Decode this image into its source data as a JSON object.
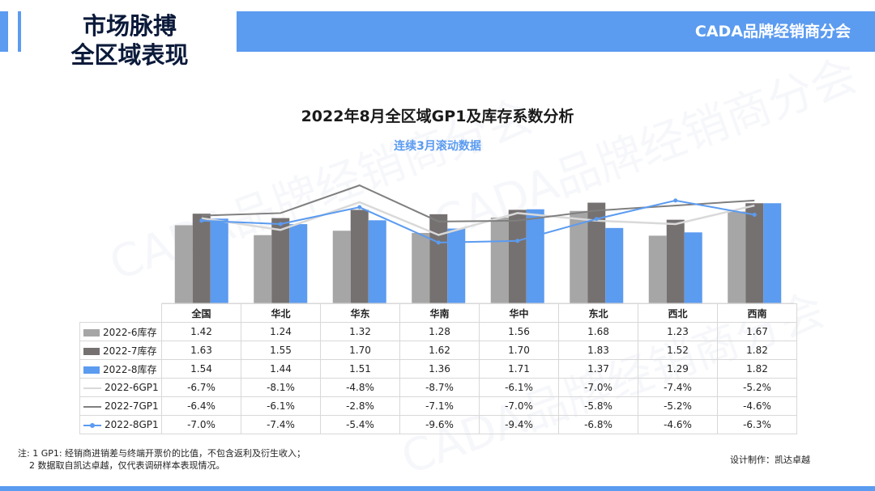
{
  "header": {
    "section_title_line1": "市场脉搏",
    "section_title_line2": "全区域表现",
    "brand": "CADA品牌经销商分会"
  },
  "watermark_text": "CADA品牌经销商分会",
  "colors": {
    "accent": "#5b9bf0",
    "inv6": "#a6a6a6",
    "inv7": "#767171",
    "inv8": "#5b9bf0",
    "gp6": "#d9d9d9",
    "gp7": "#7f7f7f",
    "gp8": "#5b9bf0"
  },
  "chart_data": {
    "type": "bar",
    "title": "2022年8月全区域GP1及库存系数分析",
    "subtitle": "连续3月滚动数据",
    "categories": [
      "全国",
      "华北",
      "华东",
      "华南",
      "华中",
      "东北",
      "西北",
      "西南"
    ],
    "series": [
      {
        "name": "2022-6库存",
        "kind": "bar",
        "values": [
          1.42,
          1.24,
          1.32,
          1.28,
          1.56,
          1.68,
          1.23,
          1.67
        ],
        "labels": [
          "1.42",
          "1.24",
          "1.32",
          "1.28",
          "1.56",
          "1.68",
          "1.23",
          "1.67"
        ]
      },
      {
        "name": "2022-7库存",
        "kind": "bar",
        "values": [
          1.63,
          1.55,
          1.7,
          1.62,
          1.7,
          1.83,
          1.52,
          1.82
        ],
        "labels": [
          "1.63",
          "1.55",
          "1.70",
          "1.62",
          "1.70",
          "1.83",
          "1.52",
          "1.82"
        ]
      },
      {
        "name": "2022-8库存",
        "kind": "bar",
        "values": [
          1.54,
          1.44,
          1.51,
          1.36,
          1.71,
          1.37,
          1.29,
          1.82
        ],
        "labels": [
          "1.54",
          "1.44",
          "1.51",
          "1.36",
          "1.71",
          "1.37",
          "1.29",
          "1.82"
        ]
      },
      {
        "name": "2022-6GP1",
        "kind": "line",
        "values": [
          -6.7,
          -8.1,
          -4.8,
          -8.7,
          -6.1,
          -7.0,
          -7.4,
          -5.2
        ],
        "labels": [
          "-6.7%",
          "-8.1%",
          "-4.8%",
          "-8.7%",
          "-6.1%",
          "-7.0%",
          "-7.4%",
          "-5.2%"
        ]
      },
      {
        "name": "2022-7GP1",
        "kind": "line",
        "values": [
          -6.4,
          -6.1,
          -2.8,
          -7.1,
          -7.0,
          -5.8,
          -5.2,
          -4.6
        ],
        "labels": [
          "-6.4%",
          "-6.1%",
          "-2.8%",
          "-7.1%",
          "-7.0%",
          "-5.8%",
          "-5.2%",
          "-4.6%"
        ]
      },
      {
        "name": "2022-8GP1",
        "kind": "line",
        "markers": true,
        "values": [
          -7.0,
          -7.4,
          -5.4,
          -9.6,
          -9.4,
          -6.8,
          -4.6,
          -6.3
        ],
        "labels": [
          "-7.0%",
          "-7.4%",
          "-5.4%",
          "-9.6%",
          "-9.4%",
          "-6.8%",
          "-4.6%",
          "-6.3%"
        ]
      }
    ],
    "bar_ylim": [
      0,
      2.5
    ],
    "line_ylim": [
      -30,
      0
    ],
    "grid": false,
    "legend": "data-table"
  },
  "footnote": {
    "line1": "注: 1 GP1: 经销商进销差与终端开票价的比值，不包含返利及衍生收入；",
    "line2": "2 数据取自凯达卓越，仅代表调研样本表现情况。"
  },
  "credit": "设计制作：凯达卓越"
}
